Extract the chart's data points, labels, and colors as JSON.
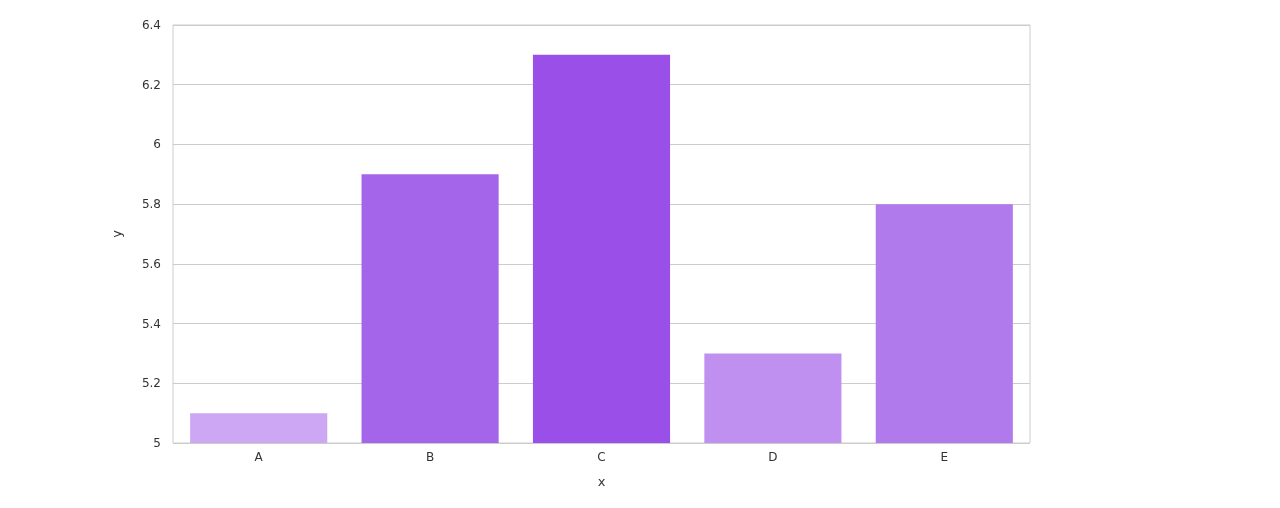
{
  "chart_data": {
    "type": "bar",
    "xlabel": "x",
    "ylabel": "y",
    "categories": [
      "A",
      "B",
      "C",
      "D",
      "E"
    ],
    "values": [
      5.1,
      5.9,
      6.3,
      5.3,
      5.8
    ],
    "colors": [
      "#cda6f4",
      "#a565ea",
      "#9a4fe8",
      "#bf90f0",
      "#b07aed"
    ],
    "ylim": [
      5,
      6.4
    ],
    "yticks": [
      5,
      5.2,
      5.4,
      5.6,
      5.8,
      6,
      6.2,
      6.4
    ],
    "grid": "y"
  }
}
